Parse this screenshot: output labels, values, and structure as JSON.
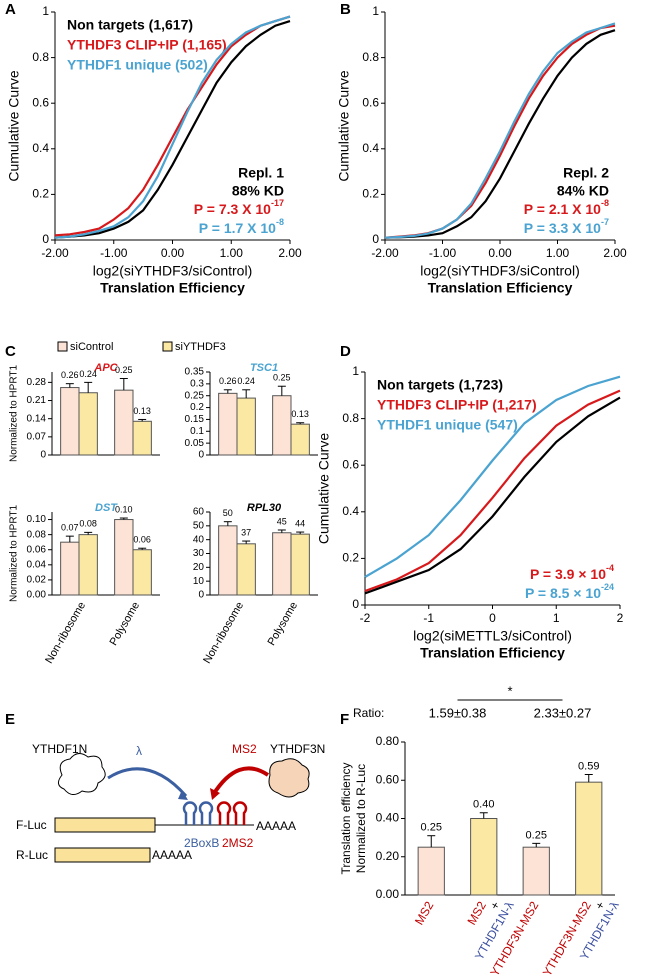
{
  "chart_data": [
    {
      "type": "line",
      "panel": "A",
      "y_label": "Cumulative Curve",
      "x_label": [
        "log2(siYTHDF3/siControl)",
        "Translation Efficiency"
      ],
      "x": [
        -2,
        -1.75,
        -1.5,
        -1.25,
        -1,
        -0.75,
        -0.5,
        -0.25,
        0,
        0.25,
        0.5,
        0.75,
        1,
        1.25,
        1.5,
        1.75,
        2
      ],
      "series": [
        {
          "name": "Non targets (1,617)",
          "color": "#000000",
          "values": [
            0.01,
            0.015,
            0.02,
            0.03,
            0.05,
            0.08,
            0.13,
            0.22,
            0.33,
            0.45,
            0.57,
            0.69,
            0.78,
            0.85,
            0.9,
            0.94,
            0.96
          ]
        },
        {
          "name": "YTHDF3 CLIP+IP (1,165)",
          "color": "#d7191c",
          "values": [
            0.02,
            0.025,
            0.035,
            0.05,
            0.09,
            0.14,
            0.22,
            0.33,
            0.45,
            0.57,
            0.67,
            0.77,
            0.85,
            0.9,
            0.94,
            0.96,
            0.98
          ]
        },
        {
          "name": "YTHDF1 unique (502)",
          "color": "#4aa3d0",
          "values": [
            0.01,
            0.015,
            0.025,
            0.04,
            0.06,
            0.1,
            0.17,
            0.28,
            0.42,
            0.56,
            0.69,
            0.79,
            0.86,
            0.91,
            0.94,
            0.96,
            0.98
          ]
        }
      ],
      "xlim": [
        -2,
        2
      ],
      "xticks": [
        {
          "value": -2,
          "label": "-2.00"
        },
        {
          "value": -1,
          "label": "-1.00"
        },
        {
          "value": 0,
          "label": "0.00"
        },
        {
          "value": 1,
          "label": "1.00"
        },
        {
          "value": 2,
          "label": "2.00"
        }
      ],
      "ylim": [
        0,
        1
      ],
      "yticks": [
        0,
        0.2,
        0.4,
        0.6,
        0.8,
        1
      ],
      "annotations": [
        "Repl. 1",
        "88% KD"
      ],
      "p_values": [
        {
          "text": "P = 7.3 X 10",
          "sup": "-17",
          "color": "#d7191c"
        },
        {
          "text": "P = 1.7 X 10",
          "sup": "-8",
          "color": "#4aa3d0"
        }
      ]
    },
    {
      "type": "line",
      "panel": "B",
      "y_label": "Cumulative Curve",
      "x_label": [
        "log2(siYTHDF3/siControl)",
        "Translation Efficiency"
      ],
      "x": [
        -2,
        -1.75,
        -1.5,
        -1.25,
        -1,
        -0.75,
        -0.5,
        -0.25,
        0,
        0.25,
        0.5,
        0.75,
        1,
        1.25,
        1.5,
        1.75,
        2
      ],
      "series": [
        {
          "color": "#000000",
          "values": [
            0.01,
            0.012,
            0.015,
            0.02,
            0.03,
            0.06,
            0.1,
            0.17,
            0.27,
            0.39,
            0.51,
            0.62,
            0.72,
            0.8,
            0.86,
            0.9,
            0.92
          ]
        },
        {
          "color": "#d7191c",
          "values": [
            0.01,
            0.015,
            0.02,
            0.03,
            0.05,
            0.09,
            0.15,
            0.25,
            0.37,
            0.5,
            0.62,
            0.72,
            0.8,
            0.86,
            0.9,
            0.93,
            0.94
          ]
        },
        {
          "color": "#4aa3d0",
          "values": [
            0.01,
            0.013,
            0.018,
            0.028,
            0.05,
            0.09,
            0.16,
            0.27,
            0.39,
            0.52,
            0.64,
            0.74,
            0.82,
            0.87,
            0.91,
            0.93,
            0.95
          ]
        }
      ],
      "xlim": [
        -2,
        2
      ],
      "xticks": [
        {
          "value": -2,
          "label": "-2.00"
        },
        {
          "value": -1,
          "label": "-1.00"
        },
        {
          "value": 0,
          "label": "0.00"
        },
        {
          "value": 1,
          "label": "1.00"
        },
        {
          "value": 2,
          "label": "2.00"
        }
      ],
      "ylim": [
        0,
        1
      ],
      "yticks": [
        0,
        0.2,
        0.4,
        0.6,
        0.8,
        1
      ],
      "annotations": [
        "Repl. 2",
        "84% KD"
      ],
      "p_values": [
        {
          "text": "P = 2.1 X 10",
          "sup": "-8",
          "color": "#d7191c"
        },
        {
          "text": "P = 3.3 X 10",
          "sup": "-7",
          "color": "#4aa3d0"
        }
      ]
    },
    {
      "type": "bar",
      "panel": "C",
      "title": "APC",
      "title_color": "#d7191c",
      "y_label": "Normalized to HPRT1",
      "categories": [
        null,
        null
      ],
      "series": [
        {
          "name": "siControl",
          "color": "#fde3d6",
          "values": [
            0.26,
            0.25
          ],
          "errors": [
            0.015,
            0.045
          ],
          "value_labels": [
            "0.26",
            "0.25"
          ]
        },
        {
          "name": "siYTHDF3",
          "color": "#fbe9a3",
          "values": [
            0.24,
            0.13
          ],
          "errors": [
            0.04,
            0.007
          ],
          "value_labels": [
            "0.24",
            "0.13"
          ]
        }
      ],
      "ylim": [
        0,
        0.32
      ],
      "yticks": [
        0,
        0.07,
        0.14,
        0.21,
        0.28
      ]
    },
    {
      "type": "bar",
      "title": "TSC1",
      "title_color": "#4aa3d0",
      "categories": [
        null,
        null
      ],
      "series": [
        {
          "color": "#fde3d6",
          "values": [
            0.26,
            0.25
          ],
          "errors": [
            0.015,
            0.04
          ],
          "value_labels": [
            "0.26",
            "0.25"
          ]
        },
        {
          "color": "#fbe9a3",
          "values": [
            0.24,
            0.13
          ],
          "errors": [
            0.035,
            0.006
          ],
          "value_labels": [
            "0.24",
            "0.13"
          ]
        }
      ],
      "ylim": [
        0,
        0.35
      ],
      "yticks": [
        0,
        0.05,
        0.1,
        0.15,
        0.2,
        0.25,
        0.3,
        0.35
      ]
    },
    {
      "type": "bar",
      "title": "DST",
      "title_color": "#4aa3d0",
      "y_label": "Normalized to HPRT1",
      "categories": [
        "Non-ribosome",
        "Polysome"
      ],
      "series": [
        {
          "color": "#fde3d6",
          "values": [
            0.07,
            0.1
          ],
          "errors": [
            0.008,
            0.002
          ],
          "value_labels": [
            "0.07",
            "0.10"
          ]
        },
        {
          "color": "#fbe9a3",
          "values": [
            0.08,
            0.06
          ],
          "errors": [
            0.003,
            0.002
          ],
          "value_labels": [
            "0.08",
            "0.06"
          ]
        }
      ],
      "ylim": [
        0,
        0.11
      ],
      "yticks": [
        {
          "value": 0,
          "label": "0.00"
        },
        {
          "value": 0.02,
          "label": "0.02"
        },
        {
          "value": 0.04,
          "label": "0.04"
        },
        {
          "value": 0.06,
          "label": "0.06"
        },
        {
          "value": 0.08,
          "label": "0.08"
        },
        {
          "value": 0.1,
          "label": "0.10"
        }
      ]
    },
    {
      "type": "bar",
      "title": "RPL30",
      "title_color": "#000000",
      "categories": [
        "Non-ribosome",
        "Polysome"
      ],
      "series": [
        {
          "color": "#fde3d6",
          "values": [
            50,
            45
          ],
          "errors": [
            3,
            2
          ],
          "value_labels": [
            "50",
            "45"
          ]
        },
        {
          "color": "#fbe9a3",
          "values": [
            37,
            44
          ],
          "errors": [
            2,
            1.5
          ],
          "value_labels": [
            "37",
            "44"
          ]
        }
      ],
      "ylim": [
        0,
        60
      ],
      "yticks": [
        0,
        10,
        20,
        30,
        40,
        50,
        60
      ]
    },
    {
      "type": "line",
      "panel": "D",
      "y_label": "Cumulative Curve",
      "x_label": [
        "log2(siMETTL3/siControl)",
        "Translation Efficiency"
      ],
      "x": [
        -2,
        -1.5,
        -1,
        -0.5,
        0,
        0.5,
        1,
        1.5,
        2
      ],
      "series": [
        {
          "name": "Non targets (1,723)",
          "color": "#000000",
          "values": [
            0.05,
            0.1,
            0.15,
            0.24,
            0.38,
            0.55,
            0.7,
            0.81,
            0.89
          ]
        },
        {
          "name": "YTHDF3 CLIP+IP (1,217)",
          "color": "#d7191c",
          "values": [
            0.06,
            0.11,
            0.18,
            0.3,
            0.46,
            0.63,
            0.77,
            0.86,
            0.92
          ]
        },
        {
          "name": "YTHDF1 unique (547)",
          "color": "#4aa3d0",
          "values": [
            0.12,
            0.2,
            0.3,
            0.45,
            0.62,
            0.78,
            0.88,
            0.94,
            0.98
          ]
        }
      ],
      "xlim": [
        -2,
        2
      ],
      "xticks": [
        -2,
        -1,
        0,
        1,
        2
      ],
      "ylim": [
        0,
        1
      ],
      "yticks": [
        0,
        0.2,
        0.4,
        0.6,
        0.8,
        1
      ],
      "p_values": [
        {
          "text": "P = 3.9 × 10",
          "sup": "-4",
          "color": "#d7191c"
        },
        {
          "text": "P = 8.5 × 10",
          "sup": "-24",
          "color": "#4aa3d0"
        }
      ]
    },
    {
      "type": "bar",
      "panel": "F",
      "y_label": [
        "Translation efficiency",
        "Normalized to R-Luc"
      ],
      "categories": [
        [
          {
            "text": "MS2",
            "color": "#c00000"
          }
        ],
        [
          {
            "text": "MS2",
            "color": "#c00000"
          },
          {
            "text": "+",
            "color": "#000000"
          },
          {
            "text": "YTHDF1N-λ",
            "color": "#3b4fa0"
          }
        ],
        [
          {
            "text": "YTHDF3N-MS2",
            "color": "#c00000"
          }
        ],
        [
          {
            "text": "YTHDF3N-MS2",
            "color": "#c00000"
          },
          {
            "text": "+",
            "color": "#000000"
          },
          {
            "text": "YTHDF1N-λ",
            "color": "#3b4fa0"
          }
        ]
      ],
      "series": [
        {
          "colors": [
            "#fde3d6",
            "#fbe9a3",
            "#fde3d6",
            "#fbe9a3"
          ],
          "values": [
            0.25,
            0.4,
            0.25,
            0.59
          ],
          "errors": [
            0.06,
            0.03,
            0.02,
            0.04
          ],
          "value_labels": [
            "0.25",
            "0.40",
            "0.25",
            "0.59"
          ]
        }
      ],
      "ylim": [
        0,
        0.8
      ],
      "yticks": [
        {
          "value": 0,
          "label": "0.00"
        },
        {
          "value": 0.2,
          "label": "0.20"
        },
        {
          "value": 0.4,
          "label": "0.40"
        },
        {
          "value": 0.6,
          "label": "0.60"
        },
        {
          "value": 0.8,
          "label": "0.80"
        }
      ],
      "ratio_label": "Ratio:",
      "ratios": [
        "1.59±0.38",
        "2.33±0.27"
      ],
      "significance": "*"
    }
  ],
  "diagram": {
    "panel": "E",
    "reader_1": "YTHDF1N",
    "tag_1": "λ",
    "tag_2": "MS2",
    "reader_2": "YTHDF3N",
    "reporter_1": "F-Luc",
    "reporter_2": "R-Luc",
    "site_1": "2BoxB",
    "site_2": "2MS2",
    "tail_1": "AAAAA",
    "tail_2": "AAAAA"
  }
}
